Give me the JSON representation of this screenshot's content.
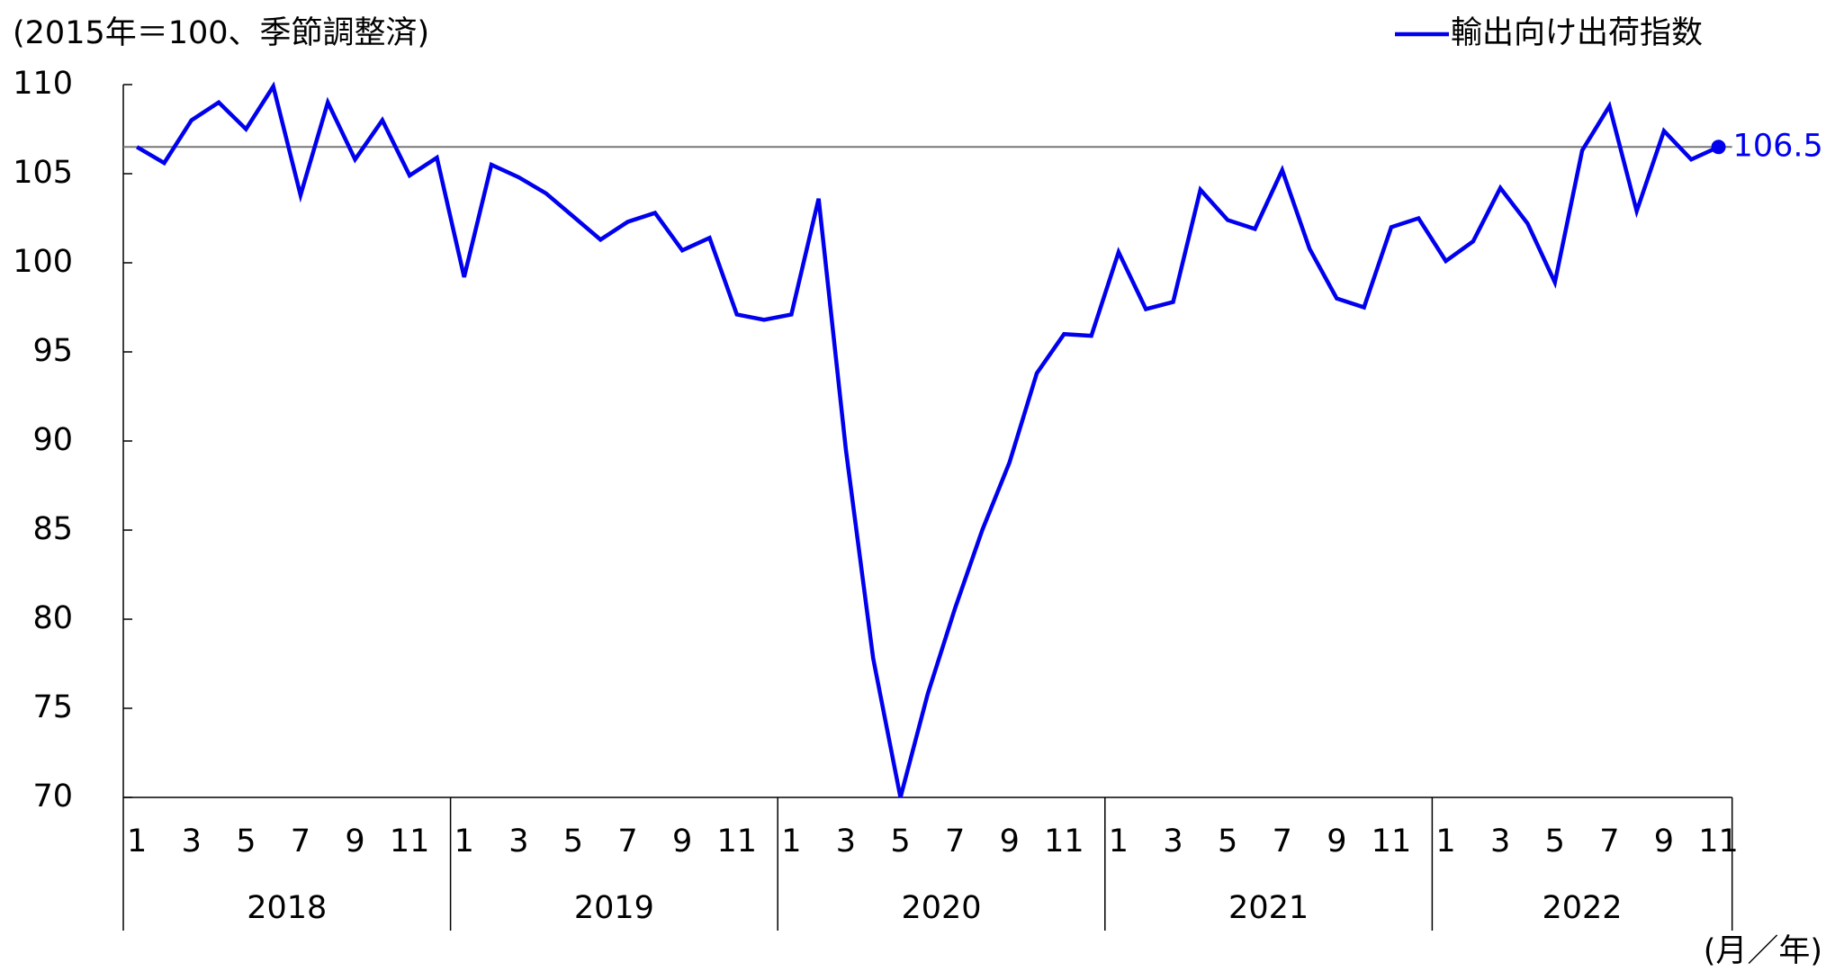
{
  "chart_data": {
    "type": "line",
    "y_axis_label": "(2015年＝100、季節調整済)",
    "x_axis_label": "(月／年)",
    "categories": [
      "1",
      null,
      "3",
      null,
      "5",
      null,
      "7",
      null,
      "9",
      null,
      "11",
      null,
      "1",
      null,
      "3",
      null,
      "5",
      null,
      "7",
      null,
      "9",
      null,
      "11",
      null,
      "1",
      null,
      "3",
      null,
      "5",
      null,
      "7",
      null,
      "9",
      null,
      "11",
      null,
      "1",
      null,
      "3",
      null,
      "5",
      null,
      "7",
      null,
      "9",
      null,
      "11",
      null,
      "1",
      null,
      "3",
      null,
      "5",
      null,
      "7",
      null,
      "9",
      null,
      "11"
    ],
    "groups": [
      "2018",
      "2019",
      "2020",
      "2021",
      "2022"
    ],
    "group_size": 12,
    "series": [
      {
        "name": "輸出向け出荷指数",
        "color": "#0000ee",
        "values": [
          106.5,
          105.6,
          108.0,
          109.0,
          107.5,
          109.9,
          103.8,
          109.0,
          105.8,
          108.0,
          104.9,
          105.9,
          99.2,
          105.5,
          104.8,
          103.9,
          102.6,
          101.3,
          102.3,
          102.8,
          100.7,
          101.4,
          97.1,
          96.8,
          97.1,
          103.6,
          89.5,
          77.8,
          70.0,
          75.8,
          80.6,
          85.0,
          88.8,
          93.8,
          96.0,
          95.9,
          100.6,
          97.4,
          97.8,
          104.1,
          102.4,
          101.9,
          105.2,
          100.8,
          98.0,
          97.5,
          102.0,
          102.5,
          100.1,
          101.2,
          104.2,
          102.2,
          98.9,
          106.3,
          108.8,
          102.9,
          107.4,
          105.8,
          106.5
        ],
        "value_labels": [
          null,
          null,
          null,
          null,
          null,
          null,
          null,
          null,
          null,
          null,
          null,
          null,
          null,
          null,
          null,
          null,
          null,
          null,
          null,
          null,
          null,
          null,
          null,
          null,
          null,
          null,
          null,
          null,
          null,
          null,
          null,
          null,
          null,
          null,
          null,
          null,
          null,
          null,
          null,
          null,
          null,
          null,
          null,
          null,
          null,
          null,
          null,
          null,
          null,
          null,
          null,
          null,
          null,
          null,
          null,
          null,
          null,
          null,
          "106.5"
        ]
      }
    ],
    "hline": 106.5,
    "ylim": [
      70,
      110
    ],
    "yticks": [
      70,
      75,
      80,
      85,
      90,
      95,
      100,
      105,
      110
    ],
    "legend": "top-right"
  }
}
